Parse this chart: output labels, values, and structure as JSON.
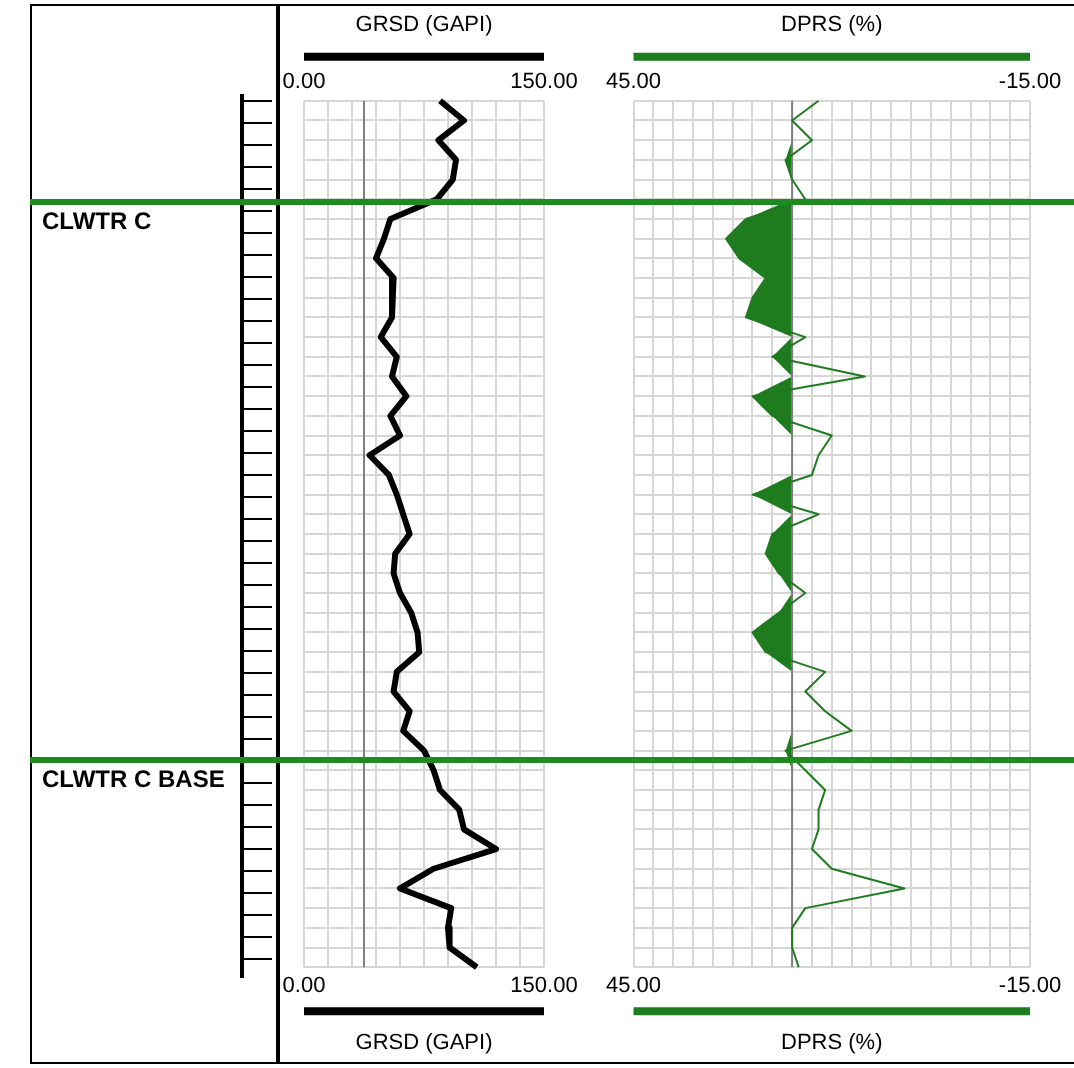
{
  "chart_data": [
    {
      "type": "line",
      "orientation": "horizontal",
      "xlabel": "GRSD (GAPI)",
      "x2label": "GRSD (GAPI)",
      "categories": [
        null,
        null,
        null,
        null,
        null,
        null,
        null,
        null,
        null,
        null,
        null,
        null,
        null,
        null,
        null,
        null,
        null,
        null,
        null,
        null,
        null,
        null,
        null,
        null,
        null,
        null,
        null,
        null,
        null,
        null,
        null,
        null,
        null,
        null,
        null,
        null,
        null,
        null,
        null,
        null,
        null,
        null,
        null,
        null,
        null
      ],
      "series": [
        {
          "color": "#000000",
          "values": [
            85,
            100,
            84,
            95,
            93,
            83,
            54,
            50,
            45,
            56,
            55,
            55,
            48,
            58,
            55,
            64,
            54,
            60,
            41,
            53,
            58,
            62,
            66,
            57,
            56,
            60,
            67,
            71,
            72,
            58,
            56,
            66,
            62,
            75,
            81,
            85,
            97,
            100,
            120,
            81,
            60,
            92,
            90,
            91,
            108
          ]
        }
      ],
      "xlim": [
        0,
        150
      ],
      "xticks": [
        {
          "value": 0,
          "label": "0.00"
        },
        {
          "value": 15,
          "label": null
        },
        {
          "value": 30,
          "label": null
        },
        {
          "value": 45,
          "label": null
        },
        {
          "value": 60,
          "label": null
        },
        {
          "value": 75,
          "label": null
        },
        {
          "value": 90,
          "label": null
        },
        {
          "value": 105,
          "label": null
        },
        {
          "value": 120,
          "label": null
        },
        {
          "value": 135,
          "label": null
        },
        {
          "value": 150,
          "label": "150.00"
        }
      ],
      "x2lim": [
        0,
        150
      ],
      "x2ticks": [
        {
          "value": 0,
          "label": "0.00"
        },
        {
          "value": 15,
          "label": null
        },
        {
          "value": 30,
          "label": null
        },
        {
          "value": 45,
          "label": null
        },
        {
          "value": 60,
          "label": null
        },
        {
          "value": 75,
          "label": null
        },
        {
          "value": 90,
          "label": null
        },
        {
          "value": 105,
          "label": null
        },
        {
          "value": 120,
          "label": null
        },
        {
          "value": 135,
          "label": null
        },
        {
          "value": 150,
          "label": "150.00"
        }
      ],
      "grid": true,
      "tick_labels": "x",
      "ref_lines": [
        {
          "axis": "y",
          "label": "CLWTR C",
          "color": "#1f8a1f"
        },
        {
          "axis": "y",
          "label": "CLWTR C BASE",
          "color": "#1f8a1f"
        },
        {
          "axis": "x",
          "value": 37.5,
          "color": "#808080"
        }
      ]
    },
    {
      "type": "line",
      "orientation": "horizontal",
      "xlabel": "DPRS (%)",
      "x2label": "DPRS (%)",
      "categories": [
        null,
        null,
        null,
        null,
        null,
        null,
        null,
        null,
        null,
        null,
        null,
        null,
        null,
        null,
        null,
        null,
        null,
        null,
        null,
        null,
        null,
        null,
        null,
        null,
        null,
        null,
        null,
        null,
        null,
        null,
        null,
        null,
        null,
        null,
        null,
        null,
        null,
        null,
        null,
        null,
        null,
        null,
        null,
        null,
        null
      ],
      "series": [
        {
          "color": "#1e7b1e",
          "values": [
            17,
            21,
            18,
            22,
            21,
            19,
            28,
            31,
            29,
            25,
            27,
            28,
            19,
            24,
            10,
            27,
            24,
            15,
            17,
            18,
            27,
            17,
            24,
            25,
            23,
            19,
            23,
            27,
            25,
            16,
            19,
            16,
            12,
            22,
            19,
            16,
            17,
            17,
            18,
            15,
            4,
            19,
            21,
            21,
            20
          ],
          "lower": [
            21,
            21,
            21,
            21,
            21,
            21,
            21,
            21,
            21,
            21,
            21,
            21,
            21,
            21,
            21,
            21,
            21,
            21,
            21,
            21,
            21,
            21,
            21,
            21,
            21,
            21,
            21,
            21,
            21,
            21,
            21,
            21,
            21,
            21,
            21,
            21,
            21,
            21,
            21,
            21,
            21,
            21,
            21,
            21,
            21
          ],
          "upper": [
            21,
            21,
            21,
            22,
            21,
            21,
            28,
            31,
            29,
            25,
            27,
            28,
            21,
            24,
            21,
            27,
            24,
            21,
            21,
            21,
            27,
            21,
            24,
            25,
            23,
            21,
            23,
            27,
            25,
            21,
            21,
            21,
            21,
            22,
            21,
            21,
            21,
            21,
            21,
            21,
            21,
            21,
            21,
            21,
            21
          ]
        }
      ],
      "xlim": [
        45,
        -15
      ],
      "xticks": [
        {
          "value": 45,
          "label": "45.00"
        },
        {
          "value": 42,
          "label": null
        },
        {
          "value": 39,
          "label": null
        },
        {
          "value": 36,
          "label": null
        },
        {
          "value": 33,
          "label": null
        },
        {
          "value": 30,
          "label": null
        },
        {
          "value": 27,
          "label": null
        },
        {
          "value": 24,
          "label": null
        },
        {
          "value": 21,
          "label": null
        },
        {
          "value": 18,
          "label": null
        },
        {
          "value": 15,
          "label": null
        },
        {
          "value": 12,
          "label": null
        },
        {
          "value": 9,
          "label": null
        },
        {
          "value": 6,
          "label": null
        },
        {
          "value": 3,
          "label": null
        },
        {
          "value": 0,
          "label": null
        },
        {
          "value": -3,
          "label": null
        },
        {
          "value": -6,
          "label": null
        },
        {
          "value": -9,
          "label": null
        },
        {
          "value": -12,
          "label": null
        },
        {
          "value": -15,
          "label": "-15.00"
        }
      ],
      "x2lim": [
        45,
        -15
      ],
      "x2ticks": [
        {
          "value": 45,
          "label": "45.00"
        },
        {
          "value": 42,
          "label": null
        },
        {
          "value": 39,
          "label": null
        },
        {
          "value": 36,
          "label": null
        },
        {
          "value": 33,
          "label": null
        },
        {
          "value": 30,
          "label": null
        },
        {
          "value": 27,
          "label": null
        },
        {
          "value": 24,
          "label": null
        },
        {
          "value": 21,
          "label": null
        },
        {
          "value": 18,
          "label": null
        },
        {
          "value": 15,
          "label": null
        },
        {
          "value": 12,
          "label": null
        },
        {
          "value": 9,
          "label": null
        },
        {
          "value": 6,
          "label": null
        },
        {
          "value": 3,
          "label": null
        },
        {
          "value": 0,
          "label": null
        },
        {
          "value": -3,
          "label": null
        },
        {
          "value": -6,
          "label": null
        },
        {
          "value": -9,
          "label": null
        },
        {
          "value": -12,
          "label": null
        },
        {
          "value": -15,
          "label": "-15.00"
        }
      ],
      "grid": true,
      "tick_labels": "x",
      "ref_lines": [
        {
          "axis": "y",
          "color": "#1f8a1f"
        },
        {
          "axis": "y",
          "color": "#1f8a1f"
        },
        {
          "axis": "x",
          "value": 21,
          "color": "#808080"
        }
      ]
    }
  ]
}
